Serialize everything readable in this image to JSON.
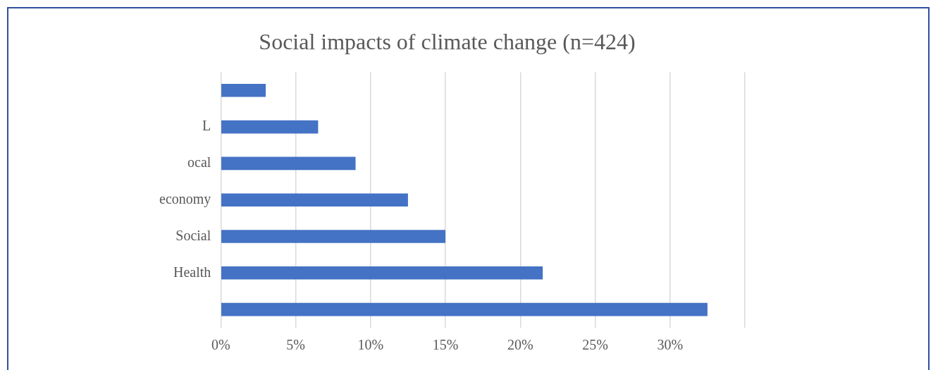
{
  "chart_data": {
    "type": "bar",
    "orientation": "horizontal",
    "title": "Social impacts of climate change (n=424)",
    "categories": [
      null,
      "L",
      "ocal",
      "economy",
      "Social",
      "Health",
      null
    ],
    "values": [
      3,
      6.5,
      9,
      12.5,
      15,
      21.5,
      32.5
    ],
    "color": "#4472c4",
    "xlim": [
      0,
      35
    ],
    "xticks": [
      {
        "value": 0,
        "label": "0%"
      },
      {
        "value": 5,
        "label": "5%"
      },
      {
        "value": 10,
        "label": "10%"
      },
      {
        "value": 15,
        "label": "15%"
      },
      {
        "value": 20,
        "label": "20%"
      },
      {
        "value": 25,
        "label": "25%"
      },
      {
        "value": 30,
        "label": "30%"
      },
      {
        "value": 35,
        "label": null
      }
    ],
    "grid": "x"
  }
}
